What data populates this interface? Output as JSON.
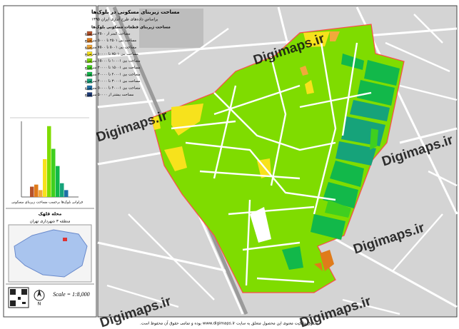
{
  "header": {
    "title": "مساحت زیربنای مسکونی در بلوک‌ها",
    "subtitle": "براساس داده‌های طرح آماری ایران ۱۳۹۵"
  },
  "legend": {
    "heading": "مساحت زیربنای قطعات مسکونی بلوک‌ها",
    "items": [
      {
        "label": "مساحت کمتر از ۲۵۰۰ مترمربع",
        "color": "#b5522a"
      },
      {
        "label": "مساحت بین ۲۵۰۱ تا ۵۰۰۰ مترمربع",
        "color": "#e07b1a"
      },
      {
        "label": "مساحت بین ۵۰۰۱ تا ۷۵۰۰ مترمربع",
        "color": "#f2a93b"
      },
      {
        "label": "مساحت بین ۷۵۰۱ تا ۱۰۰۰۰ مترمربع",
        "color": "#f7e21c"
      },
      {
        "label": "مساحت بین ۱۰۰۰۱ تا ۱۵۰۰۰ مترمربع",
        "color": "#7fdc00"
      },
      {
        "label": "مساحت بین ۱۵۰۰۱ تا ۲۰۰۰۰ مترمربع",
        "color": "#3fcf1f"
      },
      {
        "label": "مساحت بین ۲۰۰۰۱ تا ۳۰۰۰۰ مترمربع",
        "color": "#12b84a"
      },
      {
        "label": "مساحت بین ۳۰۰۰۱ تا ۴۰۰۰۰ مترمربع",
        "color": "#16a37a"
      },
      {
        "label": "مساحت بین ۴۰۰۰۱ تا ۵۰۰۰۰ مترمربع",
        "color": "#1f6fa6"
      },
      {
        "label": "مساحت بیشتر از ۵۰۰۰۰ مترمربع",
        "color": "#1c3b7a"
      }
    ]
  },
  "histogram": {
    "caption": "فراوانی بلوک‌ها برحسب مساحت زیربنای مسکونی",
    "values": [
      15,
      18,
      10,
      55,
      103,
      70,
      45,
      20,
      10,
      0
    ],
    "ylim": [
      0,
      110
    ]
  },
  "locator": {
    "title": "محله قلهک",
    "subtitle": "منطقه ۳ شهرداری تهران"
  },
  "scale": "Scale = 1:8,000",
  "north": "N",
  "watermarks": [
    "Digimaps.ir",
    "Digimaps.ir",
    "Digimaps.ir",
    "Digimaps.ir",
    "Digimaps.ir",
    "Digimaps.ir"
  ],
  "footer": "حقوق مالکیت معنوی این محصول متعلق به سایت www.digimaps.ir بوده و تمامی حقوق آن محفوظ است."
}
